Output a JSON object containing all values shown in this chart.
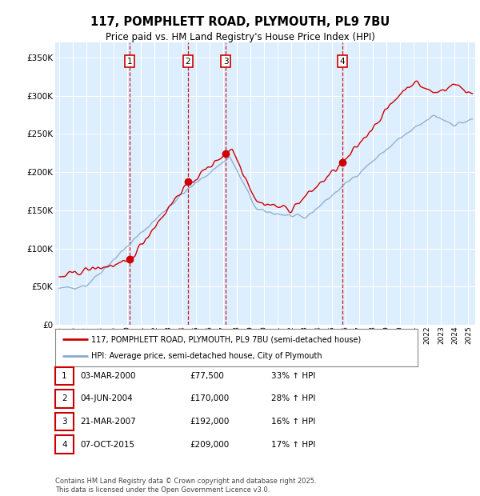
{
  "title": "117, POMPHLETT ROAD, PLYMOUTH, PL9 7BU",
  "subtitle": "Price paid vs. HM Land Registry's House Price Index (HPI)",
  "legend_line1": "117, POMPHLETT ROAD, PLYMOUTH, PL9 7BU (semi-detached house)",
  "legend_line2": "HPI: Average price, semi-detached house, City of Plymouth",
  "footer": "Contains HM Land Registry data © Crown copyright and database right 2025.\nThis data is licensed under the Open Government Licence v3.0.",
  "price_color": "#cc0000",
  "hpi_color": "#88aacc",
  "background_color": "#ddeeff",
  "grid_color": "#ffffff",
  "transactions": [
    {
      "label": "1",
      "date": "03-MAR-2000",
      "price": 77500,
      "price_str": "£77,500",
      "hpi_rel": "33% ↑ HPI",
      "x_year": 2000.17
    },
    {
      "label": "2",
      "date": "04-JUN-2004",
      "price": 170000,
      "price_str": "£170,000",
      "hpi_rel": "28% ↑ HPI",
      "x_year": 2004.42
    },
    {
      "label": "3",
      "date": "21-MAR-2007",
      "price": 192000,
      "price_str": "£192,000",
      "hpi_rel": "16% ↑ HPI",
      "x_year": 2007.22
    },
    {
      "label": "4",
      "date": "07-OCT-2015",
      "price": 209000,
      "price_str": "£209,000",
      "hpi_rel": "17% ↑ HPI",
      "x_year": 2015.77
    }
  ],
  "ylim": [
    0,
    370000
  ],
  "xlim_start": 1994.7,
  "xlim_end": 2025.5,
  "yticks": [
    0,
    50000,
    100000,
    150000,
    200000,
    250000,
    300000,
    350000
  ]
}
